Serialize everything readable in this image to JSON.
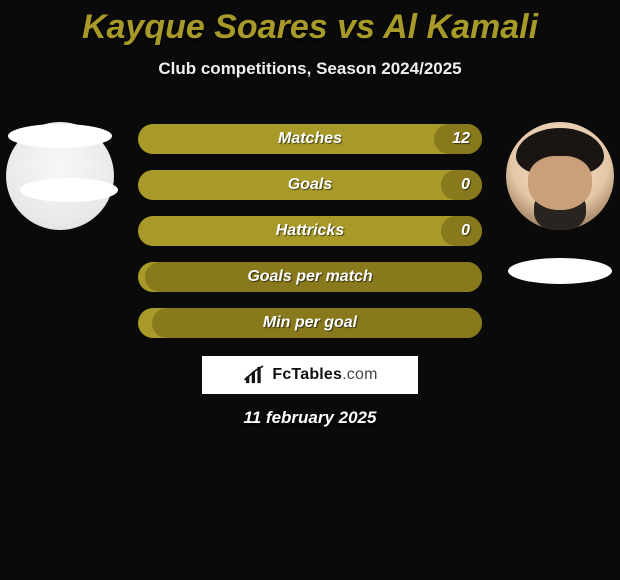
{
  "title": {
    "text": "Kayque Soares vs Al Kamali",
    "color": "#a89a28",
    "fontsize": 34
  },
  "subtitle": {
    "text": "Club competitions, Season 2024/2025",
    "fontsize": 17
  },
  "date": {
    "text": "11 february 2025",
    "fontsize": 17
  },
  "logo": {
    "brand": "FcTables",
    "domain": ".com"
  },
  "stats": {
    "track_color": "#a89a28",
    "fill_color": "#88791d",
    "label_fontsize": 16,
    "value_fontsize": 16,
    "rows": [
      {
        "label": "Matches",
        "left": "",
        "right": "12",
        "fill_left_pct": 0,
        "fill_right_pct": 14
      },
      {
        "label": "Goals",
        "left": "",
        "right": "0",
        "fill_left_pct": 0,
        "fill_right_pct": 12
      },
      {
        "label": "Hattricks",
        "left": "",
        "right": "0",
        "fill_left_pct": 0,
        "fill_right_pct": 12
      },
      {
        "label": "Goals per match",
        "left": "",
        "right": "",
        "fill_left_pct": 0,
        "fill_right_pct": 98
      },
      {
        "label": "Min per goal",
        "left": "",
        "right": "",
        "fill_left_pct": 0,
        "fill_right_pct": 96
      }
    ]
  }
}
